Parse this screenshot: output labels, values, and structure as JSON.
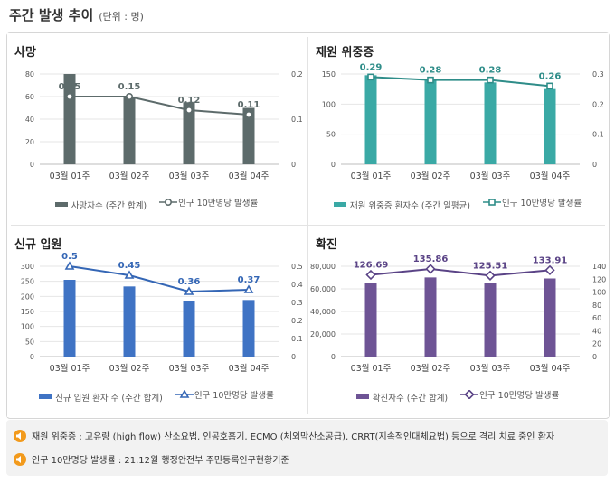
{
  "header": {
    "title": "주간 발생 추이",
    "unit": "(단위 : 명)"
  },
  "notes": [
    "재원 위중증 : 고유량 (high flow) 산소요법, 인공호흡기, ECMO (체외막산소공급), CRRT(지속적인대체요법) 등으로 격리 치료 중인 환자",
    "인구 10만명당 발생률 : 21.12월 행정안전부 주민등록인구현황기준"
  ],
  "chart_data": [
    {
      "type": "bar",
      "title": "사망",
      "categories": [
        "03월 01주",
        "03월 02주",
        "03월 03주",
        "03월 04주"
      ],
      "series": [
        {
          "name": "사망자수 (주간 합계)",
          "values": [
            80,
            60,
            55,
            50
          ],
          "axis": "left"
        },
        {
          "name": "인구 10만명당 발생률",
          "values": [
            0.15,
            0.15,
            0.12,
            0.11
          ],
          "axis": "right",
          "kind": "line"
        }
      ],
      "y_left": {
        "ticks": [
          "0",
          "20",
          "40",
          "60",
          "80"
        ],
        "max": 80
      },
      "y_right": {
        "ticks": [
          "0",
          "0.1",
          "0.2"
        ],
        "max": 0.2
      },
      "data_labels": [
        "0.15",
        "0.15",
        "0.12",
        "0.11"
      ],
      "colors": {
        "bar": "#5d6b6b",
        "line": "#5d6b6b"
      },
      "marker": "circle"
    },
    {
      "type": "bar",
      "title": "재원 위중증",
      "categories": [
        "03월 01주",
        "03월 02주",
        "03월 03주",
        "03월 04주"
      ],
      "series": [
        {
          "name": "재원 위중증 환자수 (주간 일평균)",
          "values": [
            148,
            140,
            136,
            125
          ],
          "axis": "left"
        },
        {
          "name": "인구 10만명당 발생률",
          "values": [
            0.29,
            0.28,
            0.28,
            0.26
          ],
          "axis": "right",
          "kind": "line"
        }
      ],
      "y_left": {
        "ticks": [
          "0",
          "50",
          "100",
          "150"
        ],
        "max": 150
      },
      "y_right": {
        "ticks": [
          "0",
          "0.1",
          "0.2",
          "0.3"
        ],
        "max": 0.3
      },
      "data_labels": [
        "0.29",
        "0.28",
        "0.28",
        "0.26"
      ],
      "colors": {
        "bar": "#3aa9a5",
        "line": "#2f8d89"
      },
      "marker": "square"
    },
    {
      "type": "bar",
      "title": "신규 입원",
      "categories": [
        "03월 01주",
        "03월 02주",
        "03월 03주",
        "03월 04주"
      ],
      "series": [
        {
          "name": "신규 입원 환자 수 (주간 합계)",
          "values": [
            255,
            233,
            185,
            188
          ],
          "axis": "left"
        },
        {
          "name": "인구 10만명당 발생률",
          "values": [
            0.5,
            0.45,
            0.36,
            0.37
          ],
          "axis": "right",
          "kind": "line"
        }
      ],
      "y_left": {
        "ticks": [
          "0",
          "50",
          "100",
          "150",
          "200",
          "250",
          "300"
        ],
        "max": 300
      },
      "y_right": {
        "ticks": [
          "0",
          "0.1",
          "0.2",
          "0.3",
          "0.4",
          "0.5"
        ],
        "max": 0.5
      },
      "data_labels": [
        "0.5",
        "0.45",
        "0.36",
        "0.37"
      ],
      "colors": {
        "bar": "#3f73c4",
        "line": "#3466b5"
      },
      "marker": "triangle"
    },
    {
      "type": "bar",
      "title": "확진",
      "categories": [
        "03월 01주",
        "03월 02주",
        "03월 03주",
        "03월 04주"
      ],
      "series": [
        {
          "name": "확진자수 (주간 합계)",
          "values": [
            65400,
            70100,
            64800,
            69200
          ],
          "axis": "left"
        },
        {
          "name": "인구 10만명당 발생률",
          "values": [
            126.69,
            135.86,
            125.51,
            133.91
          ],
          "axis": "right",
          "kind": "line"
        }
      ],
      "y_left": {
        "ticks": [
          "0",
          "20,000",
          "40,000",
          "60,000",
          "80,000"
        ],
        "max": 80000
      },
      "y_right": {
        "ticks": [
          "0",
          "20",
          "40",
          "60",
          "80",
          "100",
          "120",
          "140"
        ],
        "max": 140
      },
      "data_labels": [
        "126.69",
        "135.86",
        "125.51",
        "133.91"
      ],
      "colors": {
        "bar": "#6e5495",
        "line": "#5a4386"
      },
      "marker": "diamond"
    }
  ]
}
